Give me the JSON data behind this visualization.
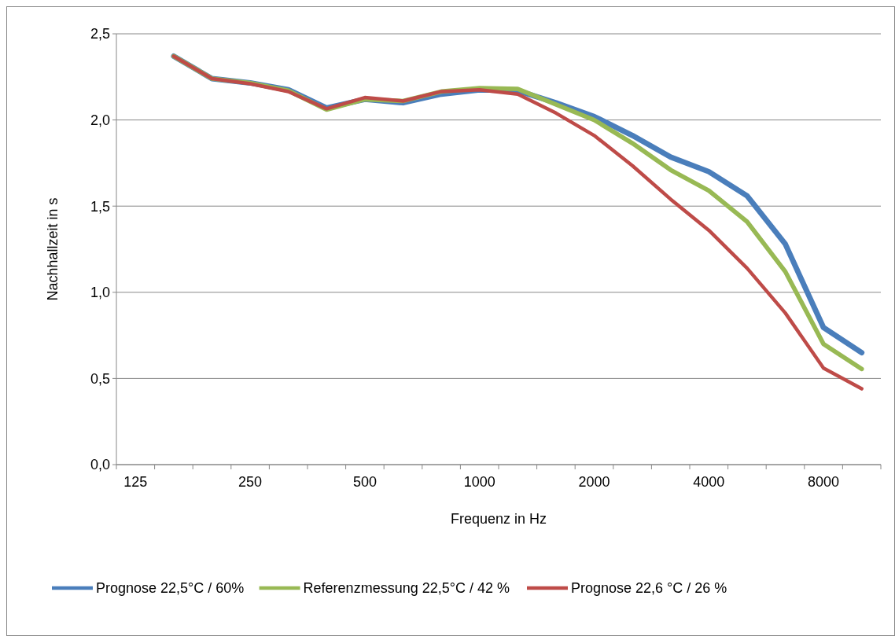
{
  "chart_data": {
    "type": "line",
    "xlabel": "Frequenz in Hz",
    "ylabel": "Nachhallzeit in s",
    "categories": [
      "125",
      null,
      null,
      "250",
      null,
      null,
      "500",
      null,
      null,
      "1000",
      null,
      null,
      "2000",
      null,
      null,
      "4000",
      null,
      null,
      "8000",
      null
    ],
    "series": [
      {
        "name": "Prognose 22,5°C / 60%",
        "color": "#4a7ebb",
        "values": [
          null,
          2.37,
          2.24,
          2.215,
          2.175,
          2.07,
          2.12,
          2.1,
          2.15,
          2.175,
          2.17,
          2.1,
          2.02,
          1.91,
          1.785,
          1.7,
          1.56,
          1.28,
          0.795,
          0.65
        ]
      },
      {
        "name": "Referenzmessung 22,5°C / 42 %",
        "color": "#98b954",
        "values": [
          null,
          2.37,
          2.24,
          2.215,
          2.17,
          2.06,
          2.12,
          2.11,
          2.165,
          2.185,
          2.18,
          2.09,
          2.0,
          1.865,
          1.71,
          1.59,
          1.41,
          1.12,
          0.7,
          0.555
        ]
      },
      {
        "name": "Prognose 22,6 °C / 26 %",
        "color": "#be4b48",
        "values": [
          null,
          2.37,
          2.24,
          2.21,
          2.165,
          2.065,
          2.13,
          2.11,
          2.165,
          2.175,
          2.15,
          2.04,
          1.91,
          1.735,
          1.54,
          1.36,
          1.14,
          0.88,
          0.56,
          0.44
        ]
      }
    ],
    "ylim": [
      0,
      2.5
    ],
    "yticks": [
      {
        "value": 0,
        "label": "0,0"
      },
      {
        "value": 0.5,
        "label": "0,5"
      },
      {
        "value": 1,
        "label": "1,0"
      },
      {
        "value": 1.5,
        "label": "1,5"
      },
      {
        "value": 2,
        "label": "2,0"
      },
      {
        "value": 2.5,
        "label": "2,5"
      }
    ],
    "grid": "y",
    "legend": "bottom",
    "marker": "none",
    "line_style": "solid"
  }
}
